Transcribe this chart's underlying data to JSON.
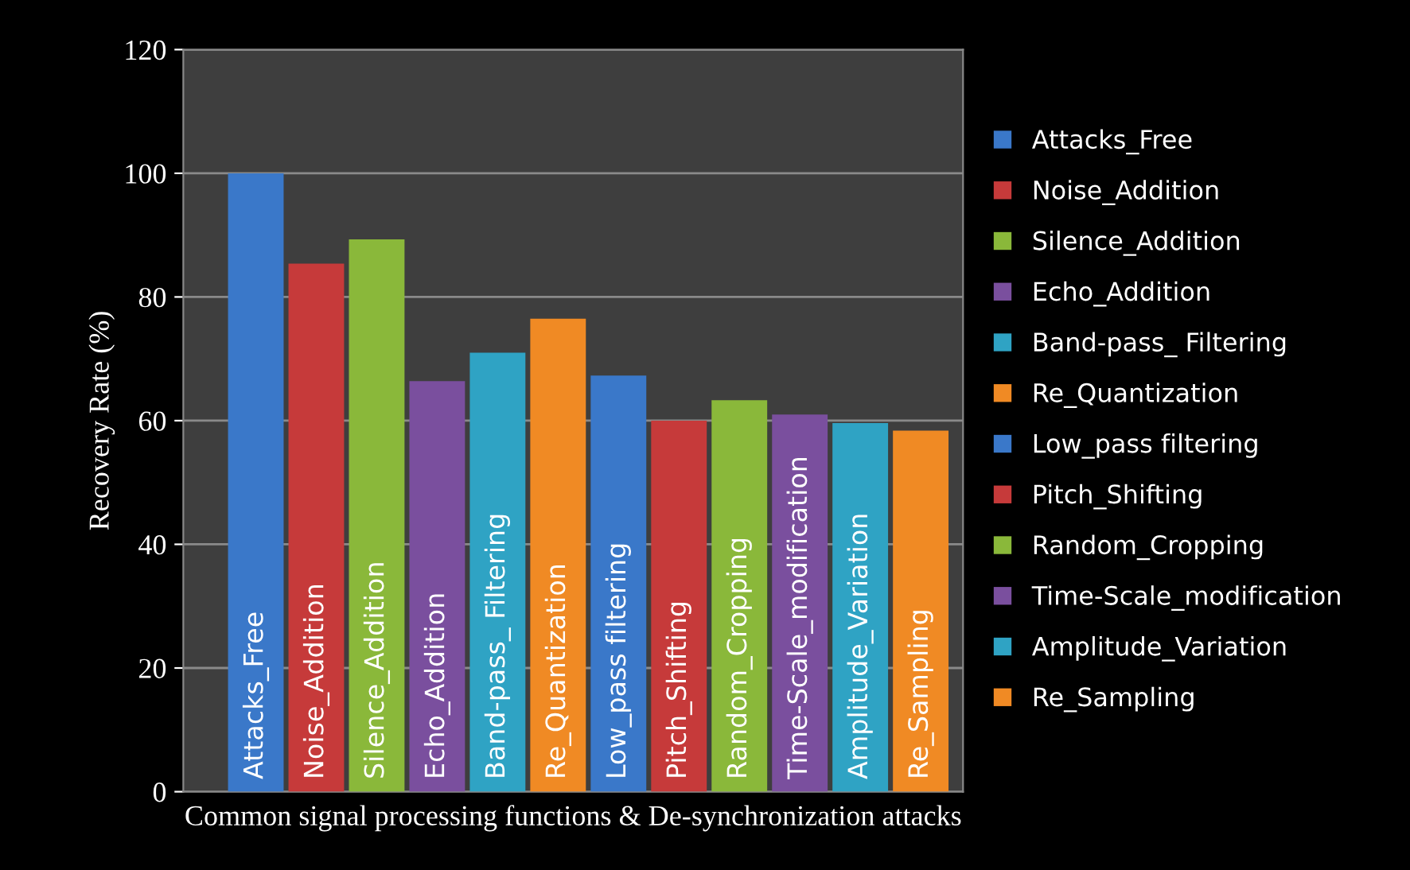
{
  "chart_data": {
    "type": "bar",
    "xlabel": "Common signal processing functions & De-synchronization attacks",
    "ylabel": "Recovery Rate (%)",
    "categories": [
      "Attacks_Free",
      "Noise_Addition",
      "Silence_Addition",
      "Echo_Addition",
      "Band-pass_ Filtering",
      "Re_Quantization",
      "Low_pass filtering",
      "Pitch_Shifting",
      "Random_Cropping",
      "Time-Scale_modification",
      "Amplitude_Variation",
      "Re_Sampling"
    ],
    "series": [
      {
        "name": "Attacks_Free",
        "color": "#3a78c9",
        "values": [
          100,
          null,
          null,
          null,
          null,
          null,
          null,
          null,
          null,
          null,
          null,
          null
        ]
      },
      {
        "name": "Noise_Addition",
        "color": "#c63a3a",
        "values": [
          null,
          85.4,
          null,
          null,
          null,
          null,
          null,
          null,
          null,
          null,
          null,
          null
        ]
      },
      {
        "name": "Silence_Addition",
        "color": "#8ab83a",
        "values": [
          null,
          null,
          89.3,
          null,
          null,
          null,
          null,
          null,
          null,
          null,
          null,
          null
        ]
      },
      {
        "name": "Echo_Addition",
        "color": "#7a4f9e",
        "values": [
          null,
          null,
          null,
          66.4,
          null,
          null,
          null,
          null,
          null,
          null,
          null,
          null
        ]
      },
      {
        "name": "Band-pass_ Filtering",
        "color": "#2fa3c4",
        "values": [
          null,
          null,
          null,
          null,
          71,
          null,
          null,
          null,
          null,
          null,
          null,
          null
        ]
      },
      {
        "name": "Re_Quantization",
        "color": "#f08a24",
        "values": [
          null,
          null,
          null,
          null,
          null,
          76.5,
          null,
          null,
          null,
          null,
          null,
          null
        ]
      },
      {
        "name": "Low_pass filtering",
        "color": "#3a78c9",
        "values": [
          null,
          null,
          null,
          null,
          null,
          null,
          67.3,
          null,
          null,
          null,
          null,
          null
        ]
      },
      {
        "name": "Pitch_Shifting",
        "color": "#c63a3a",
        "values": [
          null,
          null,
          null,
          null,
          null,
          null,
          null,
          60,
          null,
          null,
          null,
          null
        ]
      },
      {
        "name": "Random_Cropping",
        "color": "#8ab83a",
        "values": [
          null,
          null,
          null,
          null,
          null,
          null,
          null,
          null,
          63.3,
          null,
          null,
          null
        ]
      },
      {
        "name": "Time-Scale_modification",
        "color": "#7a4f9e",
        "values": [
          null,
          null,
          null,
          null,
          null,
          null,
          null,
          null,
          null,
          61,
          null,
          null
        ]
      },
      {
        "name": "Amplitude_Variation",
        "color": "#2fa3c4",
        "values": [
          null,
          null,
          null,
          null,
          null,
          null,
          null,
          null,
          null,
          null,
          59.6,
          null
        ]
      },
      {
        "name": "Re_Sampling",
        "color": "#f08a24",
        "values": [
          null,
          null,
          null,
          null,
          null,
          null,
          null,
          null,
          null,
          null,
          null,
          58.4
        ]
      }
    ],
    "ylim": [
      0,
      120
    ],
    "yticks": [
      0,
      20,
      40,
      60,
      80,
      100,
      120
    ],
    "grid": "y",
    "legend": "right"
  }
}
